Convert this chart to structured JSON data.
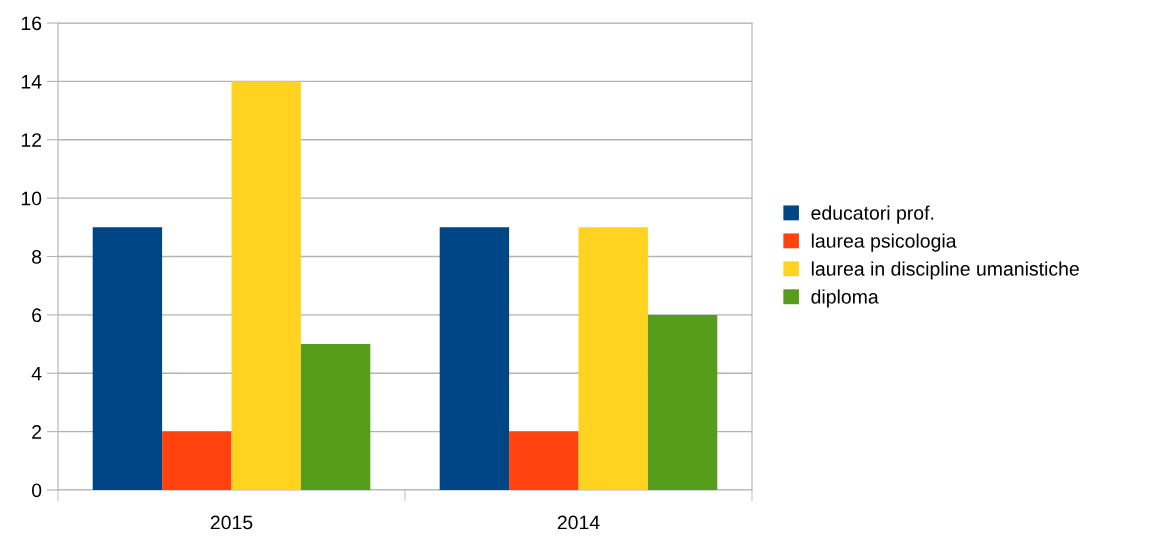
{
  "chart_data": {
    "type": "bar",
    "categories": [
      "2015",
      "2014"
    ],
    "series": [
      {
        "name": "educatori prof.",
        "color": "#004586",
        "values": [
          9,
          9
        ]
      },
      {
        "name": "laurea psicologia",
        "color": "#ff420e",
        "values": [
          2,
          2
        ]
      },
      {
        "name": "laurea in discipline umanistiche",
        "color": "#ffd320",
        "values": [
          14,
          9
        ]
      },
      {
        "name": "diploma",
        "color": "#579d1c",
        "values": [
          5,
          6
        ]
      }
    ],
    "ylim": [
      0,
      16
    ],
    "yticks": [
      0,
      2,
      4,
      6,
      8,
      10,
      12,
      14,
      16
    ],
    "grid": "y",
    "legend": "right"
  }
}
